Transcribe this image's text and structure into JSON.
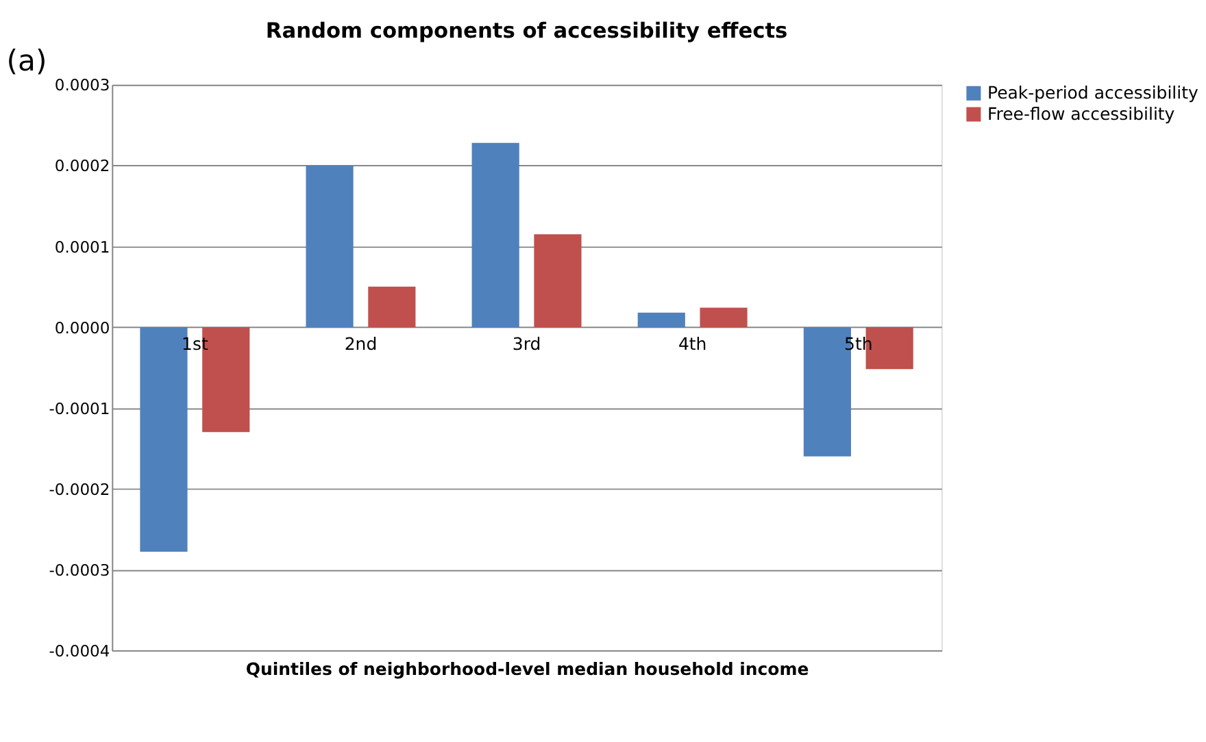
{
  "chart_data": {
    "type": "bar",
    "title": "Random components of accessibility effects",
    "xlabel": "Quintiles of  neighborhood-level  median household  income",
    "categories": [
      "1st",
      "2nd",
      "3rd",
      "4th",
      "5th"
    ],
    "series": [
      {
        "name": "Peak-period accessibility",
        "color": "#4f81bd",
        "values": [
          -0.000278,
          0.0002,
          0.000228,
          1.8e-05,
          -0.00016
        ]
      },
      {
        "name": "Free-flow accessibility",
        "color": "#c0504d",
        "values": [
          -0.00013,
          5e-05,
          0.000115,
          2.4e-05,
          -5.2e-05
        ]
      }
    ],
    "ylim": [
      -0.0004,
      0.0003
    ],
    "yticks": [
      -0.0004,
      -0.0003,
      -0.0002,
      -0.0001,
      {
        "value": 0,
        "label": "0.0000"
      },
      0.0001,
      0.0002,
      0.0003
    ],
    "grid": "y",
    "legend": "right",
    "annotations": [
      "(a)"
    ]
  }
}
